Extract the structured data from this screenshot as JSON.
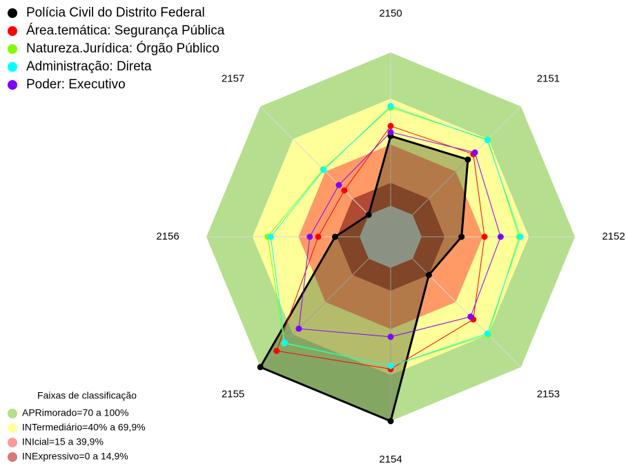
{
  "chart_data": {
    "type": "radar",
    "categories": [
      "2150",
      "2151",
      "2152",
      "2153",
      "2154",
      "2155",
      "2156",
      "2157"
    ],
    "ylim": [
      0,
      100
    ],
    "series": [
      {
        "name": "Polícia Civil do Distrito Federal",
        "color": "#000000",
        "values": [
          45.5,
          51,
          26,
          15,
          100,
          100,
          16,
          0
        ]
      },
      {
        "name": "Área.temática: Segurança Pública",
        "color": "#ff0000",
        "values": [
          52,
          56,
          41,
          56,
          66,
          85,
          27,
          22.5
        ]
      },
      {
        "name": "Natureza.Jurídica: Órgão Público",
        "color": "#7fff00",
        "values": [
          64,
          69.5,
          63.5,
          70,
          64,
          78,
          60,
          42
        ]
      },
      {
        "name": "Administração: Direta",
        "color": "#00ffff",
        "values": [
          65,
          69,
          64.5,
          69,
          64,
          77.5,
          58,
          41.5
        ]
      },
      {
        "name": "Poder: Executivo",
        "color": "#8000ff",
        "values": [
          48,
          57.5,
          51.5,
          53.5,
          45,
          64.5,
          32.5,
          27.5
        ]
      }
    ],
    "bands_title": "Faixas de classificação",
    "bands": [
      {
        "label": "APRimorado=70 a 100%",
        "from": 70,
        "to": 100,
        "color": "#b5df8a",
        "fill": "#b5df8e"
      },
      {
        "label": "INTermediário=40% a 69,9%",
        "from": 40,
        "to": 69.9,
        "color": "#ffff99",
        "fill": "#ffff9a"
      },
      {
        "label": "INIcial=15 a 39,9%",
        "from": 15,
        "to": 39.9,
        "color": "#ff9a9a",
        "fill": "#ff9a66"
      },
      {
        "label": "INExpressivo=0 a 14,9%",
        "from": 0,
        "to": 14.9,
        "color": "#d87878",
        "fill": "#b14a32"
      }
    ]
  }
}
